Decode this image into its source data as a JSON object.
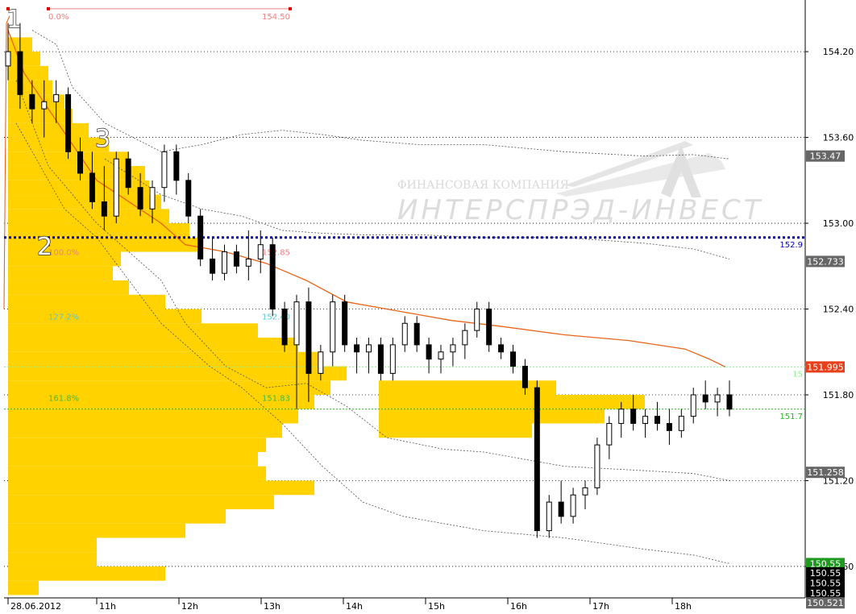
{
  "chart_data": {
    "type": "candlestick",
    "title": "",
    "start_date_label": "28.06.2012",
    "x_ticks": [
      {
        "label": "28.06.2012",
        "slot": 0
      },
      {
        "label": "11h",
        "slot": 10
      },
      {
        "label": "12h",
        "slot": 20
      },
      {
        "label": "13h",
        "slot": 30
      },
      {
        "label": "14h",
        "slot": 40
      },
      {
        "label": "15h",
        "slot": 50
      },
      {
        "label": "16h",
        "slot": 60
      },
      {
        "label": "17h",
        "slot": 70
      },
      {
        "label": "18h",
        "slot": 80
      }
    ],
    "y_ticks": [
      "154.20",
      "153.60",
      "153.00",
      "152.40",
      "151.80",
      "151.20",
      "150.60"
    ],
    "ylim": [
      150.38,
      154.55
    ],
    "price_tags": [
      {
        "label": "153.47",
        "value": 153.47,
        "bg": "#666666",
        "fg": "#ffffff"
      },
      {
        "label": "152.733",
        "value": 152.733,
        "bg": "#666666",
        "fg": "#ffffff"
      },
      {
        "label": "151.995",
        "value": 151.995,
        "bg": "#e8401a",
        "fg": "#ffffff"
      },
      {
        "label": "151.258",
        "value": 151.258,
        "bg": "#666666",
        "fg": "#ffffff"
      },
      {
        "label": "150.55",
        "value": 150.62,
        "bg": "#1e9b1e",
        "fg": "#ffffff"
      },
      {
        "label": "150.55",
        "value": 150.555,
        "bg": "#000000",
        "fg": "#ffffff"
      },
      {
        "label": "150.55",
        "value": 150.485,
        "bg": "#000000",
        "fg": "#ffffff"
      },
      {
        "label": "150.55",
        "value": 150.415,
        "bg": "#000000",
        "fg": "#ffffff"
      },
      {
        "label": "150.521",
        "value": 150.345,
        "bg": "#666666",
        "fg": "#ffffff"
      }
    ],
    "horizontal_lines": [
      {
        "value": 152.9,
        "label": "152.9",
        "color": "#0000cc",
        "style": "dotted-thick"
      },
      {
        "value": 151.995,
        "label": "15",
        "color": "#90ee90",
        "style": "dotted"
      },
      {
        "value": 151.7,
        "label": "151.7",
        "color": "#22bb22",
        "style": "dotted"
      }
    ],
    "fib_levels": [
      {
        "pct": "0.0%",
        "value": 154.5,
        "price_label": "154.50",
        "color": "#f08080"
      },
      {
        "pct": "100.0%",
        "value": 152.85,
        "price_label": "152.85",
        "color": "#f08080"
      },
      {
        "pct": "127.2%",
        "value": 152.4,
        "price_label": "152.40",
        "color": "#5bc8d8"
      },
      {
        "pct": "161.8%",
        "value": 151.83,
        "price_label": "151.83",
        "color": "#44bb44"
      }
    ],
    "wave_labels": [
      "1",
      "2",
      "3"
    ],
    "watermark": {
      "line1": "ФИНАНСОВАЯ КОМПАНИЯ",
      "line2": "ИНТЕРСПРЭД-ИНВЕСТ"
    },
    "candles": [
      [
        154.1,
        154.4,
        154.0,
        154.2
      ],
      [
        154.2,
        154.4,
        153.8,
        153.9
      ],
      [
        153.9,
        154.0,
        153.7,
        153.8
      ],
      [
        153.8,
        154.0,
        153.6,
        153.85
      ],
      [
        153.85,
        154.0,
        153.7,
        153.9
      ],
      [
        153.9,
        153.95,
        153.45,
        153.5
      ],
      [
        153.5,
        153.6,
        153.3,
        153.35
      ],
      [
        153.35,
        153.5,
        153.1,
        153.15
      ],
      [
        153.15,
        153.4,
        152.95,
        153.05
      ],
      [
        153.05,
        153.5,
        153.0,
        153.45
      ],
      [
        153.45,
        153.5,
        153.2,
        153.25
      ],
      [
        153.25,
        153.35,
        153.05,
        153.1
      ],
      [
        153.1,
        153.3,
        153.0,
        153.25
      ],
      [
        153.25,
        153.55,
        153.15,
        153.5
      ],
      [
        153.5,
        153.55,
        153.2,
        153.3
      ],
      [
        153.3,
        153.35,
        153.0,
        153.05
      ],
      [
        153.05,
        153.1,
        152.7,
        152.75
      ],
      [
        152.75,
        152.9,
        152.6,
        152.65
      ],
      [
        152.65,
        152.85,
        152.6,
        152.8
      ],
      [
        152.8,
        152.85,
        152.65,
        152.7
      ],
      [
        152.7,
        152.95,
        152.6,
        152.75
      ],
      [
        152.75,
        152.95,
        152.65,
        152.85
      ],
      [
        152.85,
        152.9,
        152.35,
        152.4
      ],
      [
        152.4,
        152.45,
        152.1,
        152.15
      ],
      [
        152.15,
        152.5,
        151.7,
        152.45
      ],
      [
        152.45,
        152.55,
        151.75,
        151.95
      ],
      [
        151.95,
        152.15,
        151.9,
        152.1
      ],
      [
        152.1,
        152.5,
        152.0,
        152.45
      ],
      [
        152.45,
        152.5,
        152.1,
        152.15
      ],
      [
        152.15,
        152.2,
        151.95,
        152.1
      ],
      [
        152.1,
        152.2,
        151.95,
        152.15
      ],
      [
        152.15,
        152.2,
        151.9,
        151.95
      ],
      [
        151.95,
        152.2,
        151.9,
        152.15
      ],
      [
        152.15,
        152.35,
        152.1,
        152.3
      ],
      [
        152.3,
        152.35,
        152.1,
        152.15
      ],
      [
        152.15,
        152.2,
        151.95,
        152.05
      ],
      [
        152.05,
        152.15,
        151.95,
        152.1
      ],
      [
        152.1,
        152.2,
        152.0,
        152.15
      ],
      [
        152.15,
        152.3,
        152.05,
        152.25
      ],
      [
        152.25,
        152.45,
        152.2,
        152.4
      ],
      [
        152.4,
        152.45,
        152.1,
        152.15
      ],
      [
        152.15,
        152.2,
        152.05,
        152.1
      ],
      [
        152.1,
        152.15,
        151.95,
        152.0
      ],
      [
        152.0,
        152.05,
        151.8,
        151.85
      ],
      [
        151.85,
        151.9,
        150.8,
        150.85
      ],
      [
        150.85,
        151.1,
        150.8,
        151.05
      ],
      [
        151.05,
        151.2,
        150.9,
        150.95
      ],
      [
        150.95,
        151.15,
        150.9,
        151.1
      ],
      [
        151.1,
        151.2,
        151.0,
        151.15
      ],
      [
        151.15,
        151.5,
        151.1,
        151.45
      ],
      [
        151.45,
        151.65,
        151.35,
        151.6
      ],
      [
        151.6,
        151.75,
        151.5,
        151.7
      ],
      [
        151.7,
        151.8,
        151.55,
        151.6
      ],
      [
        151.6,
        151.7,
        151.5,
        151.65
      ],
      [
        151.65,
        151.75,
        151.55,
        151.6
      ],
      [
        151.6,
        151.7,
        151.45,
        151.55
      ],
      [
        151.55,
        151.7,
        151.5,
        151.65
      ],
      [
        151.65,
        151.85,
        151.6,
        151.8
      ],
      [
        151.8,
        151.9,
        151.7,
        151.75
      ],
      [
        151.75,
        151.85,
        151.65,
        151.8
      ],
      [
        151.8,
        151.9,
        151.65,
        151.7
      ]
    ]
  }
}
